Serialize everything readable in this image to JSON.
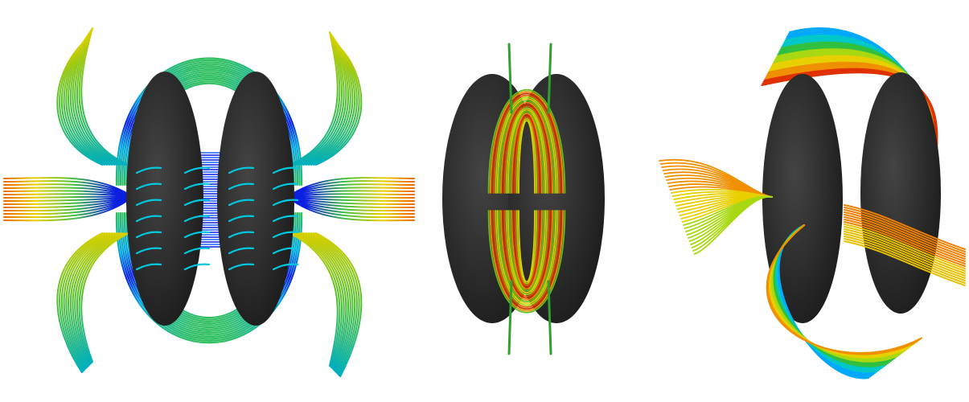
{
  "panels": [
    {
      "id": "left",
      "view": "front"
    },
    {
      "id": "middle",
      "view": "side"
    },
    {
      "id": "right",
      "view": "oblique"
    }
  ],
  "colors": {
    "background": "#ffffff",
    "body": "#262626",
    "colormap": [
      "#0a1fe0",
      "#00a8ff",
      "#00c8c8",
      "#30c040",
      "#a8d810",
      "#e8d000",
      "#f09000",
      "#e03000"
    ]
  }
}
